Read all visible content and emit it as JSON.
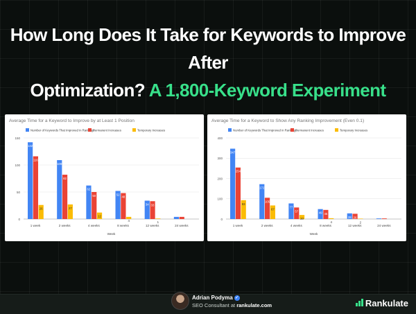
{
  "header": {
    "line1": "How Long Does It Take for Keywords to Improve After",
    "line2_white": "Optimization?",
    "line2_accent": "A 1,800-Keyword Experiment"
  },
  "colors": {
    "series": [
      "#4285f4",
      "#ea4335",
      "#fbbc04"
    ],
    "accent": "#38e08a"
  },
  "chart_data": [
    {
      "type": "bar",
      "title": "Average Time for a Keyword to Improve by at Least 1 Position",
      "xlabel": "Week",
      "ylabel": "",
      "categories": [
        "1 week",
        "2 weeks",
        "4 weeks",
        "8 weeks",
        "12 weeks",
        "24 weeks"
      ],
      "ylim": [
        0,
        150
      ],
      "yticks": [
        0,
        50,
        100,
        150
      ],
      "legend_position": "top",
      "grid": true,
      "series": [
        {
          "name": "Number of Keywords That Improved in Rankings",
          "values": [
            142,
            109,
            62,
            52,
            34,
            4
          ]
        },
        {
          "name": "Permanent Increases",
          "values": [
            116,
            82,
            50,
            48,
            33,
            4
          ]
        },
        {
          "name": "Temporary Increases",
          "values": [
            26,
            27,
            12,
            4,
            1,
            0
          ]
        }
      ]
    },
    {
      "type": "bar",
      "title": "Average Time for a Keyword to Show Any Ranking Improvement (Even 0.1)",
      "xlabel": "Week",
      "ylabel": "",
      "categories": [
        "1 week",
        "2 weeks",
        "4 weeks",
        "8 weeks",
        "12 weeks",
        "24 weeks"
      ],
      "ylim": [
        0,
        400
      ],
      "yticks": [
        0,
        100,
        200,
        300,
        400
      ],
      "legend_position": "top",
      "grid": true,
      "series": [
        {
          "name": "Number of Keywords That Improved in Rankings",
          "values": [
            347,
            172,
            77,
            49,
            28,
            3
          ]
        },
        {
          "name": "Permanent Increases",
          "values": [
            254,
            105,
            57,
            45,
            26,
            3
          ]
        },
        {
          "name": "Temporary Increases",
          "values": [
            93,
            67,
            20,
            4,
            2,
            0
          ]
        }
      ]
    }
  ],
  "author": {
    "name": "Adrian Podyma",
    "verified_icon": "check-badge-icon",
    "role_prefix": "SEO Consultant at",
    "site": "rankulate.com"
  },
  "brand": {
    "name": "Rankulate",
    "icon": "bar-chart-icon"
  }
}
